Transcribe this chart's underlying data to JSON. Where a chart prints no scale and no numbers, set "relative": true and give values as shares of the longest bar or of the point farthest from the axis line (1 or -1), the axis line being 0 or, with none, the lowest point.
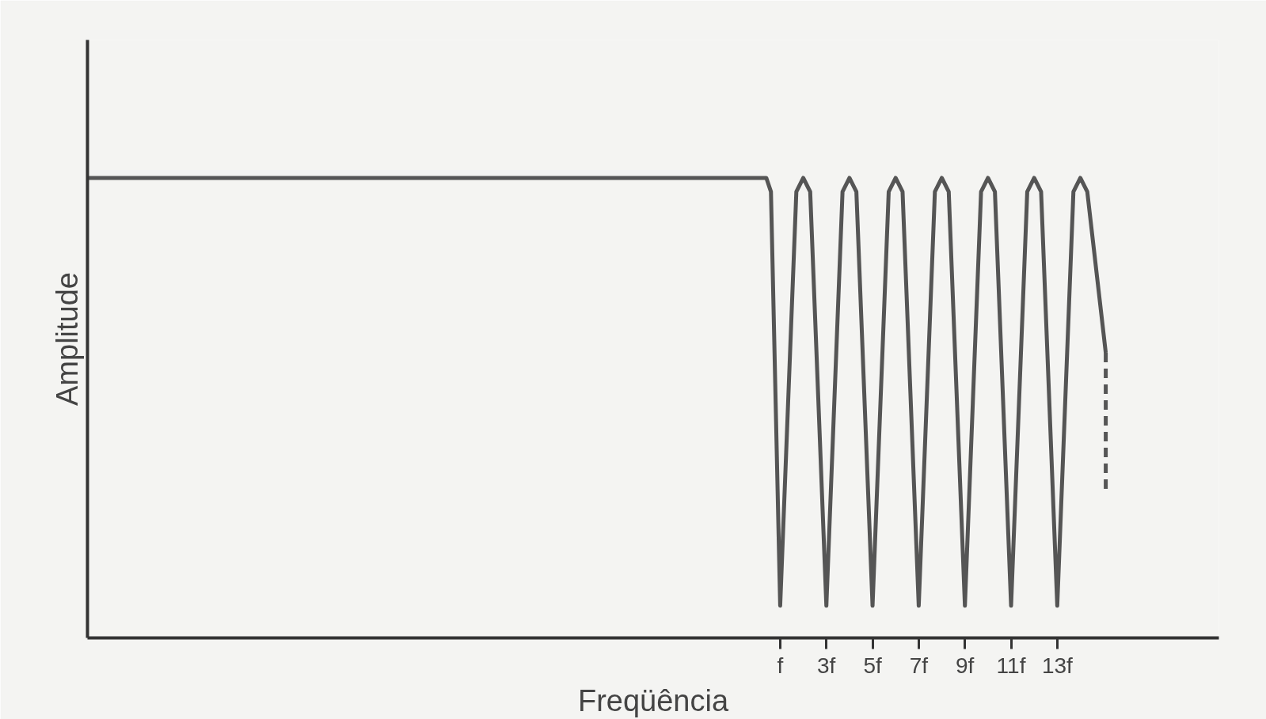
{
  "chart_data": {
    "type": "line",
    "relative": true,
    "xlabel": "Freqüência",
    "ylabel": "Amplitude",
    "xlim": [
      -29,
      20
    ],
    "xticks": [
      {
        "value": 1,
        "label": "f"
      },
      {
        "value": 3,
        "label": "3f"
      },
      {
        "value": 5,
        "label": "5f"
      },
      {
        "value": 7,
        "label": "7f"
      },
      {
        "value": 9,
        "label": "9f"
      },
      {
        "value": 11,
        "label": "11f"
      },
      {
        "value": 13,
        "label": "13f"
      }
    ],
    "tick_labels": "x",
    "marker": "none",
    "series": [
      {
        "color": "#555555",
        "line_style": "solid",
        "x": [
          -29,
          0.4,
          0.6,
          1,
          1.7,
          2,
          2.3,
          3,
          3.7,
          4,
          4.3,
          5,
          5.7,
          6,
          6.3,
          7,
          7.7,
          8,
          8.3,
          9,
          9.7,
          10,
          10.3,
          11,
          11.7,
          12,
          12.3,
          13,
          13.7,
          14,
          14.3,
          15.1
        ],
        "values": [
          1,
          1,
          0.97,
          0.07,
          0.97,
          1,
          0.97,
          0.07,
          0.97,
          1,
          0.97,
          0.07,
          0.97,
          1,
          0.97,
          0.07,
          0.97,
          1,
          0.97,
          0.07,
          0.97,
          1,
          0.97,
          0.07,
          0.97,
          1,
          0.97,
          0.07,
          0.97,
          1,
          0.97,
          0.62
        ]
      },
      {
        "color": "#555555",
        "line_style": "dashed",
        "x": [
          15.1,
          15.1
        ],
        "values": [
          0.62,
          0.32
        ]
      }
    ]
  }
}
